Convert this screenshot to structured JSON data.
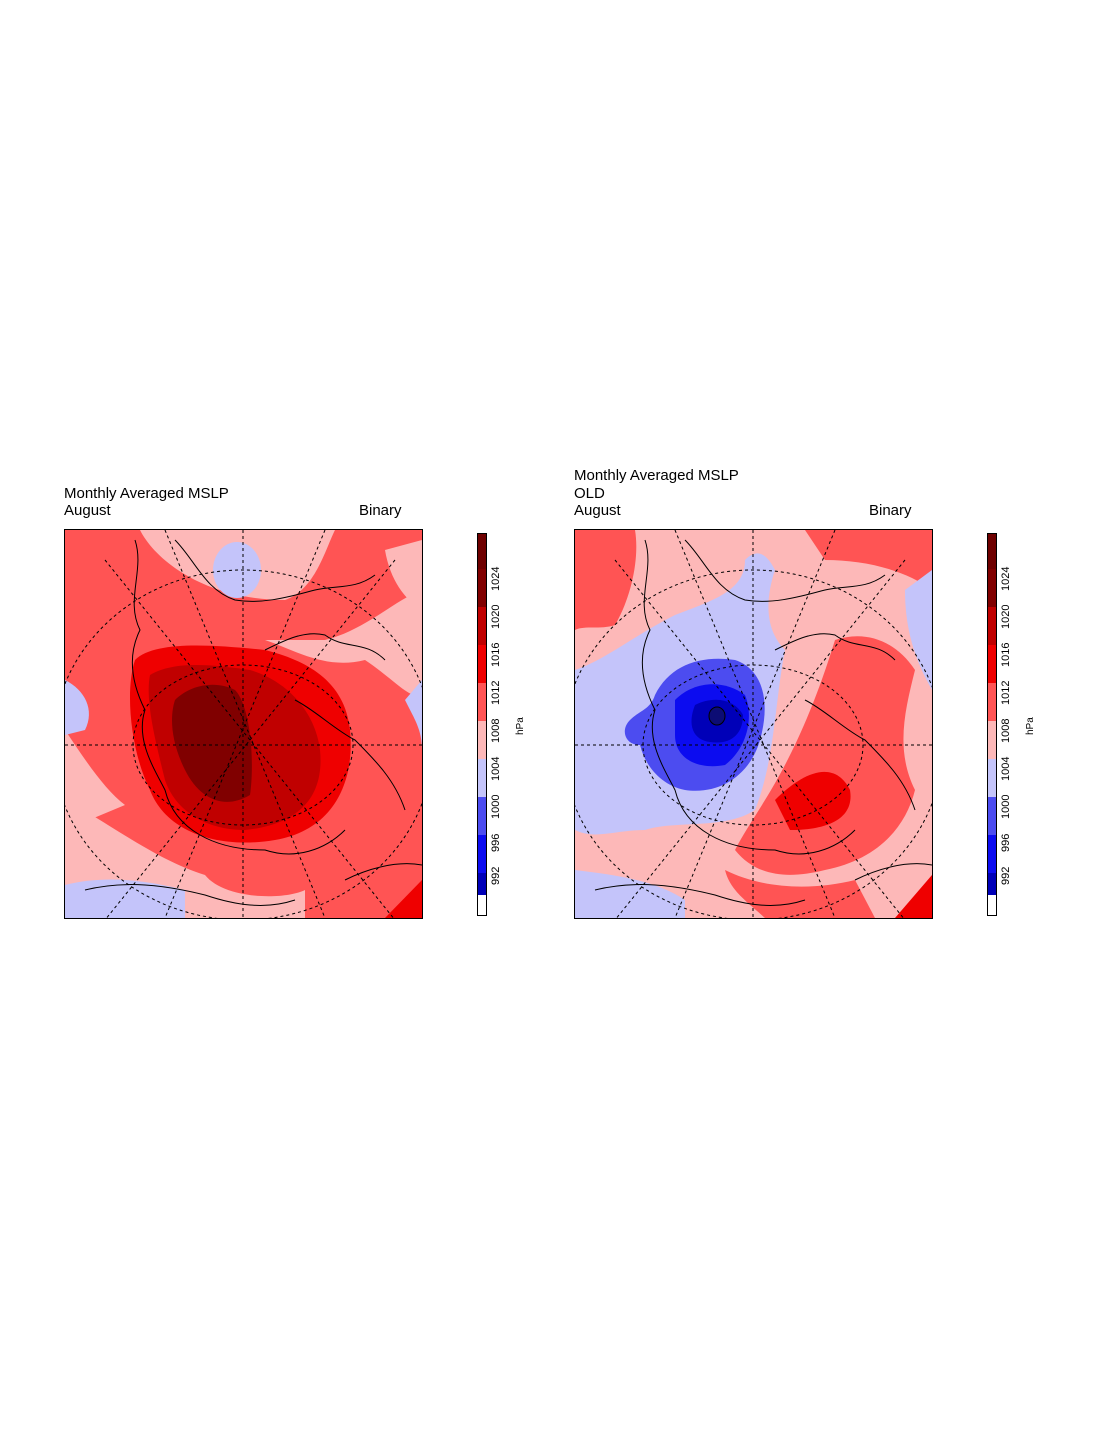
{
  "colors": {
    "levels": [
      "#0c0c74",
      "#0000b8",
      "#0c0cf0",
      "#4c4cf0",
      "#c4c4fa",
      "#fdb8b8",
      "#ff5454",
      "#ef0000",
      "#c00000",
      "#800000",
      "#6e0000"
    ]
  },
  "panels": [
    {
      "title_line1": "Monthly Averaged MSLP",
      "title_line2": "",
      "month": "August",
      "right_label": "Binary",
      "colorbar": {
        "ticks": [
          "992",
          "996",
          "1000",
          "1004",
          "1008",
          "1012",
          "1016",
          "1020",
          "1024"
        ],
        "unit": "hPa"
      }
    },
    {
      "title_line1": "Monthly Averaged MSLP",
      "title_line2": "OLD",
      "month": "August",
      "right_label": "Binary",
      "colorbar": {
        "ticks": [
          "992",
          "996",
          "1000",
          "1004",
          "1008",
          "1012",
          "1016",
          "1020",
          "1024"
        ],
        "unit": "hPa"
      }
    }
  ]
}
